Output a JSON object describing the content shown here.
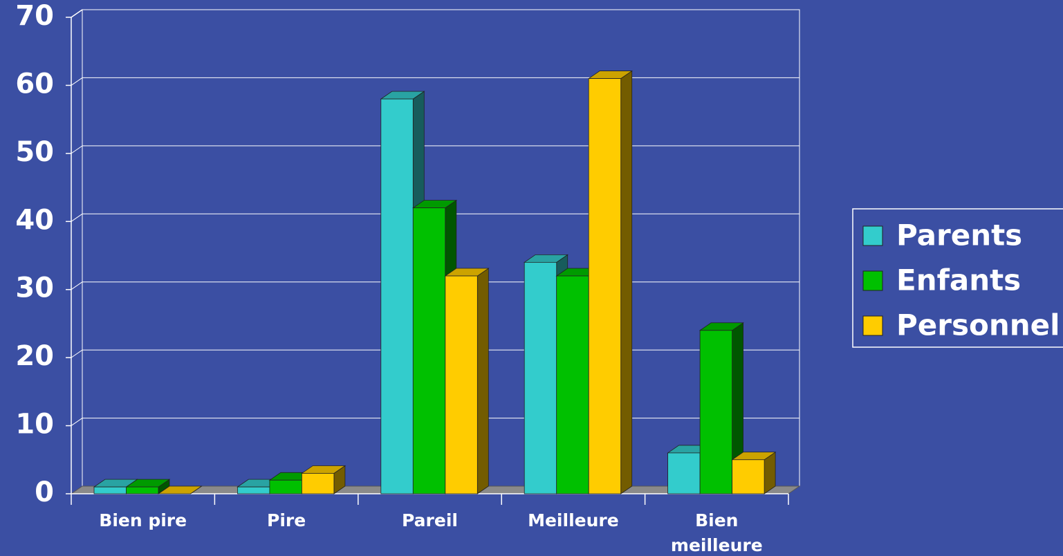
{
  "chart_data": {
    "type": "bar3d",
    "categories": [
      "Bien pire",
      "Pire",
      "Pareil",
      "Meilleure",
      "Bien meilleure"
    ],
    "series": [
      {
        "name": "Parents",
        "color": "#33cccc",
        "values": [
          1,
          1,
          58,
          34,
          6
        ]
      },
      {
        "name": "Enfants",
        "color": "#00c000",
        "values": [
          1,
          2,
          42,
          32,
          24
        ]
      },
      {
        "name": "Personnel",
        "color": "#ffcc00",
        "values": [
          0,
          3,
          32,
          61,
          5
        ]
      }
    ],
    "ylim": [
      0,
      70
    ],
    "yticks": [
      0,
      10,
      20,
      30,
      40,
      50,
      60,
      70
    ],
    "grid": true,
    "legend": "right"
  }
}
